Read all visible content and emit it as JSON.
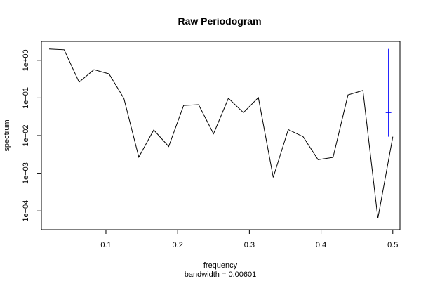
{
  "chart_data": {
    "type": "line",
    "title": "Raw Periodogram",
    "xlabel": "frequency",
    "ylabel": "spectrum",
    "sub": "bandwidth = 0.00601",
    "x_log": false,
    "y_log": true,
    "xlim": [
      0.01,
      0.51
    ],
    "ylim_log10": [
      -4.5,
      0.5
    ],
    "x_ticks": [
      {
        "value": 0.1,
        "label": "0.1"
      },
      {
        "value": 0.2,
        "label": "0.2"
      },
      {
        "value": 0.3,
        "label": "0.3"
      },
      {
        "value": 0.4,
        "label": "0.4"
      },
      {
        "value": 0.5,
        "label": "0.5"
      }
    ],
    "y_ticks": [
      {
        "log10": 0,
        "label": "1e+00"
      },
      {
        "log10": -1,
        "label": "1e−01"
      },
      {
        "log10": -2,
        "label": "1e−02"
      },
      {
        "log10": -3,
        "label": "1e−03"
      },
      {
        "log10": -4,
        "label": "1e−04"
      }
    ],
    "series": [
      {
        "color": "#000000",
        "x": [
          0.0208,
          0.0417,
          0.0625,
          0.0833,
          0.1042,
          0.125,
          0.1458,
          0.1667,
          0.1875,
          0.2083,
          0.2292,
          0.25,
          0.2708,
          0.2917,
          0.3125,
          0.3333,
          0.3542,
          0.375,
          0.3958,
          0.4167,
          0.4375,
          0.4583,
          0.4792,
          0.5
        ],
        "y": [
          1.995,
          1.905,
          0.263,
          0.562,
          0.437,
          0.0977,
          0.00269,
          0.0141,
          0.00513,
          0.0631,
          0.0661,
          0.0112,
          0.0977,
          0.0407,
          0.102,
          0.000776,
          0.0145,
          0.00933,
          0.00229,
          0.00263,
          0.12,
          0.158,
          6.31e-05,
          0.00933
        ]
      }
    ],
    "ci_bar": {
      "color": "#0000ff",
      "x": 0.494,
      "center": 0.0407,
      "lower": 0.00933,
      "upper": 2.0
    },
    "grid": false,
    "legend": "none"
  }
}
